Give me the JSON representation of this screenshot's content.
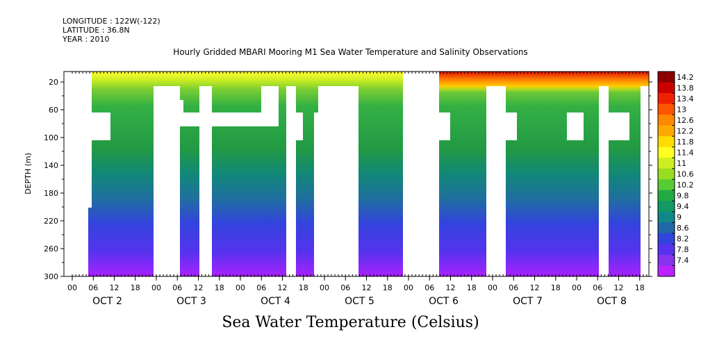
{
  "header": {
    "longitude": "LONGITUDE : 122W(-122)",
    "latitude": "LATITUDE : 36.8N",
    "year": "YEAR : 2010"
  },
  "chart_data": {
    "type": "heatmap",
    "title": "Hourly Gridded MBARI Mooring M1 Sea Water Temperature and Salinity Observations",
    "xlabel": "Sea Water Temperature (Celsius)",
    "ylabel": "DEPTH (m)",
    "x_hour_ticks": [
      "00",
      "06",
      "12",
      "18",
      "00",
      "06",
      "12",
      "18",
      "00",
      "06",
      "12",
      "18",
      "00",
      "06",
      "12",
      "18",
      "00",
      "06",
      "12",
      "18",
      "00",
      "06",
      "12",
      "18",
      "00",
      "06",
      "12",
      "18"
    ],
    "x_day_labels": [
      "OCT  2",
      "OCT  3",
      "OCT  4",
      "OCT  5",
      "OCT  6",
      "OCT  7",
      "OCT  8"
    ],
    "y_ticks": [
      20,
      60,
      100,
      140,
      180,
      220,
      260,
      300
    ],
    "ylim": [
      300,
      5
    ],
    "colorbar": {
      "levels": [
        14.2,
        13.8,
        13.4,
        13,
        12.6,
        12.2,
        11.8,
        11.4,
        11,
        10.6,
        10.2,
        9.8,
        9.4,
        9,
        8.6,
        8.2,
        7.8,
        7.4
      ],
      "colors": [
        "#8c0000",
        "#cc0000",
        "#ee2200",
        "#ff5500",
        "#ff8800",
        "#ffaa00",
        "#ffdd00",
        "#ffff22",
        "#ccee22",
        "#99dd22",
        "#55cc33",
        "#22aa44",
        "#119966",
        "#118888",
        "#2266aa",
        "#3344dd",
        "#5533ee",
        "#8833ee",
        "#bb22ff"
      ]
    },
    "grid": false,
    "legend": "right"
  }
}
